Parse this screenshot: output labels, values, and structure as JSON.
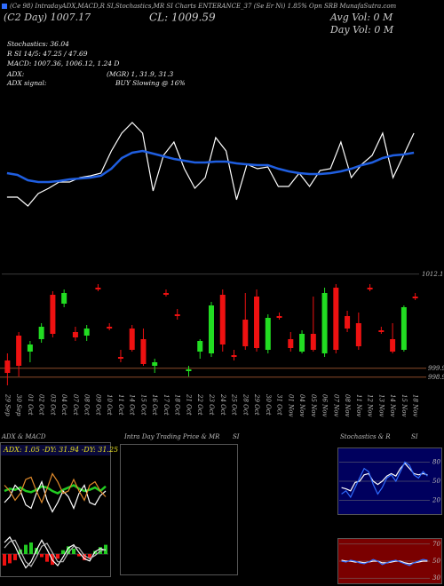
{
  "header": {
    "title": "(Ce 98) IntradayADX,MACD,R  SI,Stochastics,MR  SI Charts ENTERANCE_37   (Se  Er  Ni) 1.85% Opn  SRB MunafaSutra.com",
    "day_close": "(C2  Day) 1007.17",
    "close": "CL: 1009.59",
    "avg_vol": "Avg Vol: 0  M",
    "day_vol": "Day Vol: 0  M",
    "stochastics": "Stochastics: 36.04",
    "rsi": "R   SI 14/5: 47.25 / 47.69",
    "macd": "MACD: 1007.36, 1006.12, 1.24  D",
    "adx_label": "ADX:",
    "adx_value": "(MGR) 1, 31.9, 31.3",
    "adx_signal_label": "ADX  signal:",
    "adx_signal": "BUY Slowing @ 16%"
  },
  "chart_data": [
    {
      "type": "line",
      "ylim": [
        1012,
        1032
      ],
      "yticks": [
        1012.11
      ],
      "series": [
        {
          "color": "#ffffff",
          "values": [
            1020.38,
            1020.38,
            1019.43,
            1020.76,
            1021.33,
            1022.0,
            1022.0,
            1022.48,
            1022.67,
            1022.95,
            1025.33,
            1027.24,
            1028.38,
            1027.24,
            1021.05,
            1024.86,
            1026.29,
            1023.43,
            1021.33,
            1022.48,
            1026.76,
            1025.33,
            1020.1,
            1023.9,
            1023.43,
            1023.62,
            1021.52,
            1021.52,
            1022.95,
            1021.52,
            1023.24,
            1023.43,
            1026.29,
            1022.48,
            1023.9,
            1024.86,
            1027.24,
            1022.48,
            1024.86,
            1027.24
          ]
        },
        {
          "color": "#1f5ee0",
          "values": [
            1022.95,
            1022.76,
            1022.19,
            1022.0,
            1022.0,
            1022.1,
            1022.29,
            1022.38,
            1022.48,
            1022.67,
            1023.43,
            1024.57,
            1025.14,
            1025.33,
            1025.05,
            1024.76,
            1024.48,
            1024.29,
            1024.1,
            1024.1,
            1024.19,
            1024.19,
            1024.0,
            1023.9,
            1023.81,
            1023.81,
            1023.43,
            1023.14,
            1022.95,
            1022.86,
            1022.86,
            1022.95,
            1023.14,
            1023.43,
            1023.81,
            1024.1,
            1024.57,
            1024.86,
            1024.95,
            1025.14
          ]
        }
      ]
    },
    {
      "type": "candlestick",
      "ylim": [
        997.4,
        1010.2
      ],
      "hlines": [
        999.92,
        998.92
      ],
      "hline_color": "#8b4a2b",
      "up_color": "#22dd22",
      "down_color": "#ee1111",
      "x": [
        "29 Sep",
        "30 Sep",
        "01 Oct",
        "02 Oct",
        "03 Oct",
        "04 Oct",
        "07 Oct",
        "08 Oct",
        "09 Oct",
        "10 Oct",
        "11 Oct",
        "14 Oct",
        "15 Oct",
        "16 Oct",
        "17 Oct",
        "18 Oct",
        "21 Oct",
        "22 Oct",
        "23 Oct",
        "24 Oct",
        "25 Oct",
        "28 Oct",
        "29 Oct",
        "30 Oct",
        "31 Oct",
        "01 Nov",
        "04 Nov",
        "05 Nov",
        "06 Nov",
        "07 Nov",
        "08 Nov",
        "11 Nov",
        "12 Nov",
        "13 Nov",
        "14 Nov",
        "15 Nov",
        "18 Nov"
      ],
      "open": [
        1000.8,
        1003.6,
        1001.8,
        1003.2,
        1008.2,
        1007.2,
        1004.0,
        1003.6,
        1009.0,
        1004.6,
        1001.2,
        1004.4,
        1003.2,
        1000.2,
        1008.4,
        1006.0,
        999.6,
        1001.8,
        1001.6,
        1008.2,
        1001.4,
        1005.4,
        1008.0,
        1002.0,
        1005.8,
        1003.2,
        1001.8,
        1003.8,
        1001.6,
        1009.0,
        1005.8,
        1005.0,
        1009.0,
        1004.2,
        1003.2,
        1002.0,
        1008.0
      ],
      "high": [
        1001.6,
        1004.0,
        1003.0,
        1005.0,
        1008.6,
        1008.8,
        1004.6,
        1004.8,
        1009.4,
        1005.0,
        1002.0,
        1004.8,
        1004.4,
        1001.0,
        1008.8,
        1006.6,
        1000.2,
        1003.2,
        1007.4,
        1008.8,
        1002.0,
        1008.4,
        1008.8,
        1006.0,
        1006.2,
        1004.0,
        1004.2,
        1008.0,
        1009.0,
        1009.4,
        1006.4,
        1006.2,
        1009.4,
        1004.6,
        1005.0,
        1007.0,
        1008.4
      ],
      "low": [
        998.0,
        999.0,
        1000.6,
        1002.8,
        1003.4,
        1006.8,
        1003.0,
        1003.0,
        1008.6,
        1004.2,
        1000.6,
        1001.8,
        1000.2,
        999.4,
        1008.0,
        1005.4,
        999.0,
        1001.0,
        1001.2,
        1001.8,
        1000.8,
        1002.0,
        1001.8,
        1001.6,
        1005.4,
        1001.8,
        1001.6,
        1001.8,
        1001.2,
        1001.6,
        1004.0,
        1002.0,
        1008.6,
        1003.8,
        1001.6,
        1001.8,
        1007.6
      ],
      "close": [
        999.4,
        1000.2,
        1002.6,
        1004.6,
        1003.8,
        1008.4,
        1003.4,
        1004.4,
        1008.8,
        1004.4,
        1001.0,
        1002.0,
        1000.4,
        1000.6,
        1008.2,
        1005.8,
        999.8,
        1003.0,
        1007.0,
        1002.6,
        1001.2,
        1002.4,
        1002.2,
        1005.6,
        1005.6,
        1002.2,
        1003.8,
        1002.0,
        1008.4,
        1002.0,
        1004.4,
        1002.4,
        1008.8,
        1004.0,
        1001.8,
        1006.8,
        1007.8
      ]
    },
    {
      "type": "line",
      "title": "ADX  & MACD",
      "subtitle": "ADX: 1.05 -DY: 31.94 -DY: 31.25",
      "ylim": [
        0,
        60
      ],
      "series": [
        {
          "color": "#22cc22",
          "values": [
            30,
            32,
            31,
            33,
            30,
            29,
            31,
            34,
            33,
            30,
            28,
            31,
            33,
            35,
            32,
            30,
            31,
            33,
            30,
            34
          ]
        },
        {
          "color": "#ffffff",
          "values": [
            20,
            25,
            35,
            30,
            18,
            15,
            28,
            38,
            22,
            12,
            20,
            30,
            25,
            15,
            28,
            35,
            20,
            18,
            26,
            30
          ]
        },
        {
          "color": "#e08a2c",
          "values": [
            35,
            30,
            22,
            28,
            40,
            42,
            30,
            20,
            32,
            45,
            38,
            28,
            30,
            40,
            30,
            22,
            35,
            38,
            30,
            25
          ]
        }
      ]
    },
    {
      "type": "macd",
      "ylim": [
        -3,
        3
      ],
      "up_color": "#22cc22",
      "down_color": "#ee1111",
      "histogram": [
        -1.5,
        -1.2,
        -0.8,
        0.6,
        1.2,
        1.5,
        0.8,
        -0.4,
        -1.0,
        -1.4,
        -0.6,
        0.5,
        1.0,
        0.7,
        -0.3,
        -0.8,
        -0.5,
        0.4,
        0.9,
        1.2
      ],
      "series": [
        {
          "color": "#ffffff",
          "values": [
            1.5,
            2.2,
            1.0,
            -0.5,
            -1.8,
            -1.0,
            0.5,
            1.8,
            0.6,
            -0.8,
            -1.5,
            -0.4,
            0.8,
            1.2,
            0.2,
            -0.6,
            -0.9,
            0.3,
            0.7,
            0.5
          ]
        },
        {
          "color": "#bbbbbb",
          "values": [
            0.8,
            1.6,
            1.8,
            0.4,
            -1.0,
            -1.6,
            -0.4,
            1.0,
            1.4,
            0.2,
            -1.0,
            -1.0,
            0.2,
            1.0,
            0.8,
            -0.2,
            -0.6,
            -0.2,
            0.4,
            0.6
          ]
        }
      ]
    },
    {
      "type": "line",
      "title": "Intra Day Trading Price  & MR",
      "title2": "SI",
      "series": []
    },
    {
      "type": "line",
      "title": "Stochastics  & R",
      "title2": "SI",
      "background": "#00005e",
      "ylim": [
        0,
        100
      ],
      "yticks": [
        80,
        50,
        20
      ],
      "series": [
        {
          "color": "#ffffff",
          "values": [
            40,
            38,
            35,
            48,
            50,
            60,
            62,
            50,
            45,
            50,
            58,
            62,
            58,
            70,
            78,
            70,
            62,
            60,
            62,
            60
          ]
        },
        {
          "color": "#2f6cff",
          "values": [
            30,
            35,
            25,
            40,
            55,
            70,
            65,
            45,
            30,
            40,
            55,
            60,
            50,
            65,
            80,
            75,
            60,
            55,
            65,
            58
          ]
        }
      ]
    },
    {
      "type": "line",
      "background": "#7a0000",
      "ylim": [
        25,
        75
      ],
      "yticks": [
        70,
        50,
        30
      ],
      "series": [
        {
          "color": "#ffffff",
          "values": [
            51,
            50,
            50,
            49,
            49,
            48,
            49,
            50,
            50,
            48,
            48,
            49,
            50,
            50,
            48,
            47,
            48,
            49,
            50,
            50
          ]
        },
        {
          "color": "#2f6cff",
          "values": [
            50,
            49,
            51,
            50,
            48,
            47,
            49,
            52,
            50,
            46,
            48,
            50,
            51,
            49,
            47,
            45,
            48,
            50,
            52,
            51
          ]
        }
      ]
    }
  ]
}
